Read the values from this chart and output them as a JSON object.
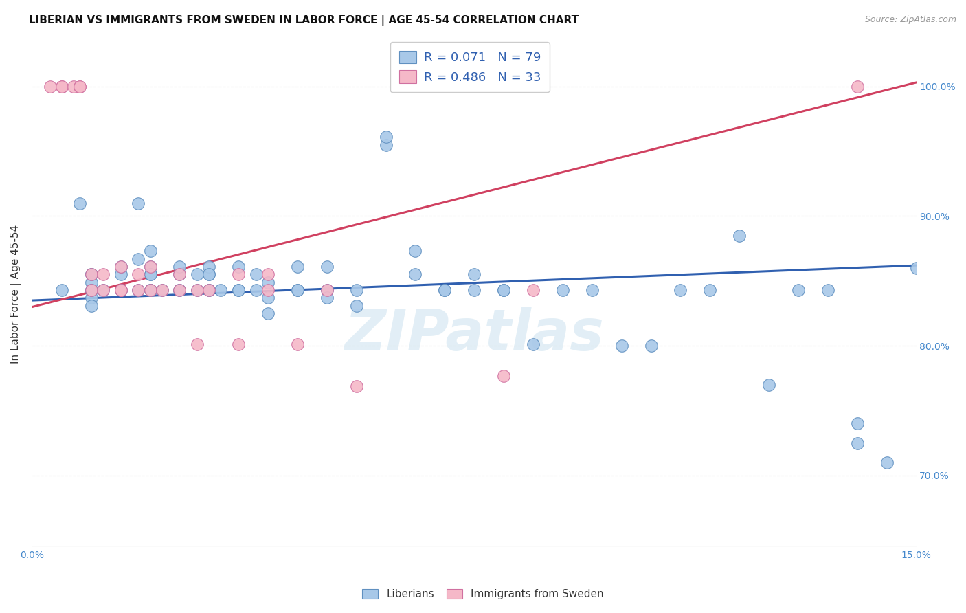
{
  "title": "LIBERIAN VS IMMIGRANTS FROM SWEDEN IN LABOR FORCE | AGE 45-54 CORRELATION CHART",
  "source": "Source: ZipAtlas.com",
  "ylabel": "In Labor Force | Age 45-54",
  "legend_blue": "R = 0.071   N = 79",
  "legend_pink": "R = 0.486   N = 33",
  "legend_label_blue": "Liberians",
  "legend_label_pink": "Immigrants from Sweden",
  "blue_color": "#a8c8e8",
  "pink_color": "#f5b8c8",
  "blue_edge_color": "#6090c0",
  "pink_edge_color": "#d070a0",
  "blue_line_color": "#3060b0",
  "pink_line_color": "#d04060",
  "watermark": "ZIPatlas",
  "blue_scatter_x": [
    0.5,
    0.8,
    1.0,
    1.0,
    1.0,
    1.0,
    1.0,
    1.0,
    1.0,
    1.0,
    1.2,
    1.5,
    1.5,
    1.5,
    1.5,
    1.8,
    1.8,
    1.8,
    2.0,
    2.0,
    2.0,
    2.0,
    2.0,
    2.0,
    2.0,
    2.2,
    2.5,
    2.5,
    2.5,
    2.5,
    2.8,
    2.8,
    3.0,
    3.0,
    3.0,
    3.0,
    3.0,
    3.2,
    3.5,
    3.5,
    3.5,
    3.8,
    3.8,
    4.0,
    4.0,
    4.0,
    4.5,
    4.5,
    4.5,
    5.0,
    5.0,
    5.0,
    5.5,
    5.5,
    6.0,
    6.0,
    6.5,
    6.5,
    7.0,
    7.0,
    7.5,
    7.5,
    8.0,
    8.0,
    8.5,
    9.0,
    9.5,
    10.0,
    10.5,
    11.0,
    11.5,
    12.0,
    12.5,
    13.0,
    13.5,
    14.0,
    14.0,
    14.5,
    15.0
  ],
  "blue_scatter_y": [
    0.843,
    0.91,
    0.843,
    0.855,
    0.843,
    0.837,
    0.849,
    0.831,
    0.843,
    0.855,
    0.843,
    0.843,
    0.855,
    0.861,
    0.843,
    0.91,
    0.867,
    0.843,
    0.855,
    0.843,
    0.861,
    0.843,
    0.855,
    0.873,
    0.843,
    0.843,
    0.855,
    0.843,
    0.843,
    0.861,
    0.843,
    0.855,
    0.855,
    0.843,
    0.861,
    0.855,
    0.843,
    0.843,
    0.843,
    0.861,
    0.843,
    0.855,
    0.843,
    0.849,
    0.825,
    0.837,
    0.843,
    0.861,
    0.843,
    0.843,
    0.861,
    0.837,
    0.831,
    0.843,
    0.955,
    0.961,
    0.855,
    0.873,
    0.843,
    0.843,
    0.843,
    0.855,
    0.843,
    0.843,
    0.801,
    0.843,
    0.843,
    0.8,
    0.8,
    0.843,
    0.843,
    0.885,
    0.77,
    0.843,
    0.843,
    0.725,
    0.74,
    0.71,
    0.86
  ],
  "pink_scatter_x": [
    0.3,
    0.5,
    0.5,
    0.7,
    0.8,
    0.8,
    1.0,
    1.0,
    1.2,
    1.2,
    1.5,
    1.5,
    1.5,
    1.8,
    1.8,
    2.0,
    2.0,
    2.2,
    2.5,
    2.5,
    2.8,
    2.8,
    3.0,
    3.5,
    3.5,
    4.0,
    4.0,
    4.5,
    5.0,
    5.5,
    8.0,
    8.5,
    14.0
  ],
  "pink_scatter_y": [
    1.0,
    1.0,
    1.0,
    1.0,
    1.0,
    1.0,
    0.843,
    0.855,
    0.843,
    0.855,
    0.843,
    0.861,
    0.843,
    0.855,
    0.843,
    0.861,
    0.843,
    0.843,
    0.855,
    0.843,
    0.843,
    0.801,
    0.843,
    0.855,
    0.801,
    0.855,
    0.843,
    0.801,
    0.843,
    0.769,
    0.777,
    0.843,
    1.0
  ],
  "blue_line_x": [
    0.0,
    15.0
  ],
  "blue_line_y": [
    0.835,
    0.862
  ],
  "pink_line_x": [
    0.0,
    15.0
  ],
  "pink_line_y": [
    0.83,
    1.003
  ],
  "xlim": [
    0.0,
    15.0
  ],
  "ylim": [
    0.645,
    1.035
  ],
  "ytick_vals": [
    0.7,
    0.8,
    0.9,
    1.0
  ],
  "ytick_labels": [
    "70.0%",
    "80.0%",
    "90.0%",
    "100.0%"
  ],
  "grid_color": "#cccccc",
  "title_fontsize": 11,
  "tick_fontsize": 10
}
